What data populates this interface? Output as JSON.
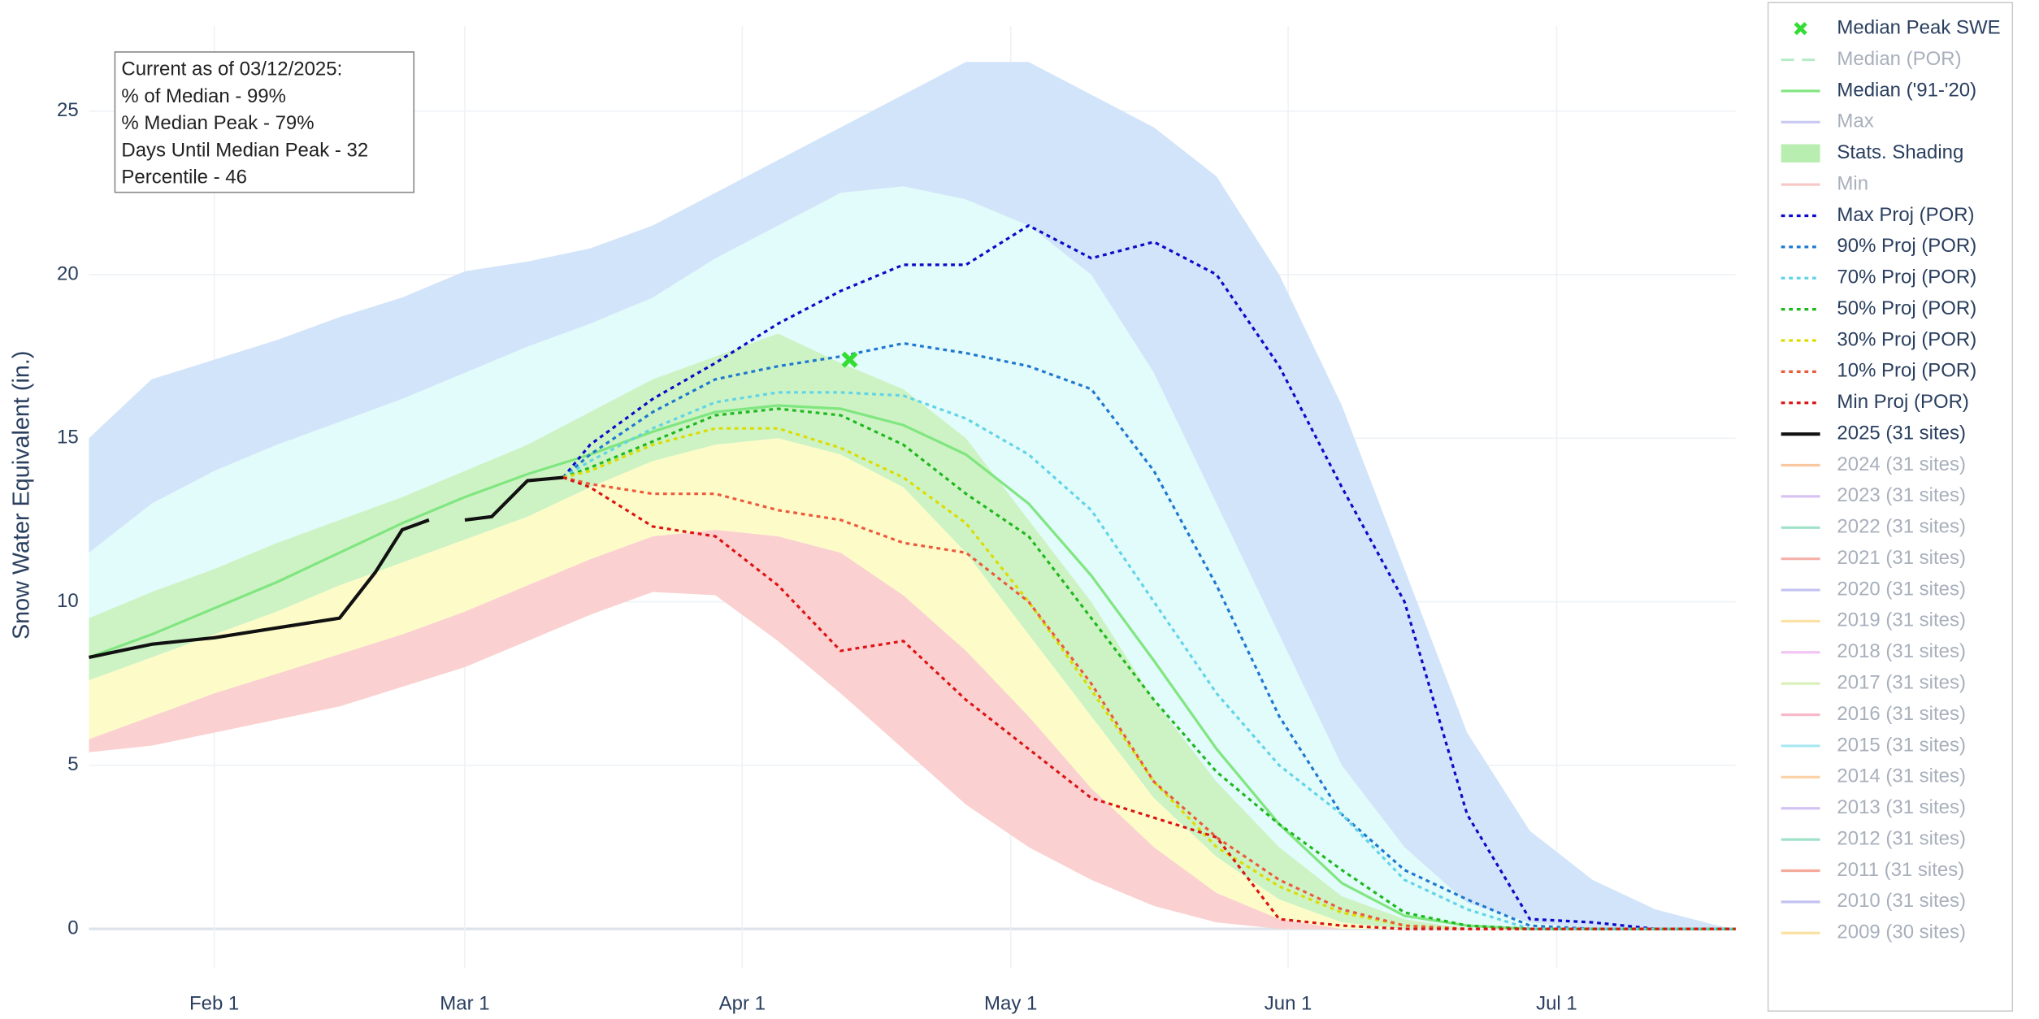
{
  "chart_data": {
    "type": "line",
    "y_label": "Snow Water Equivalent (in.)",
    "annotation": [
      "Current as of 03/12/2025:",
      "% of Median - 99%",
      "% Median Peak - 79%",
      "Days Until Median Peak - 32",
      "Percentile - 46"
    ],
    "xlim": [
      18,
      202
    ],
    "xticks": [
      {
        "value": 32,
        "label": "Feb 1"
      },
      {
        "value": 60,
        "label": "Mar 1"
      },
      {
        "value": 91,
        "label": "Apr 1"
      },
      {
        "value": 121,
        "label": "May 1"
      },
      {
        "value": 152,
        "label": "Jun 1"
      },
      {
        "value": 182,
        "label": "Jul 1"
      }
    ],
    "ylim": [
      -1.2,
      27.6
    ],
    "yticks": [
      0,
      5,
      10,
      15,
      20,
      25
    ],
    "grid": true,
    "legend": "right",
    "series": [
      {
        "name": "Median Peak SWE",
        "kind": "marker",
        "color": "#33dd33",
        "x": [
          103
        ],
        "values": [
          17.4
        ]
      },
      {
        "name": "Median (POR)",
        "visible": false,
        "color": "#b8ecc8",
        "dash": "dash"
      },
      {
        "name": "Median ('91-'20)",
        "kind": "line",
        "color": "#80e680",
        "x": [
          18,
          25,
          32,
          39,
          46,
          53,
          60,
          67,
          74,
          81,
          88,
          95,
          102,
          109,
          116,
          123,
          130,
          137,
          144,
          151,
          158,
          165,
          172,
          179,
          186,
          193,
          200,
          202
        ],
        "values": [
          8.3,
          9,
          9.8,
          10.6,
          11.5,
          12.4,
          13.2,
          13.9,
          14.5,
          15.2,
          15.8,
          16,
          15.9,
          15.4,
          14.5,
          13,
          10.8,
          8.2,
          5.5,
          3.2,
          1.4,
          0.4,
          0.1,
          0,
          0,
          0,
          0,
          0
        ]
      },
      {
        "name": "Max",
        "visible": false,
        "color": "#c8c8f2"
      },
      {
        "name": "Stats. Shading",
        "kind": "band",
        "x": [
          18,
          25,
          32,
          39,
          46,
          53,
          60,
          67,
          74,
          81,
          88,
          95,
          102,
          109,
          116,
          123,
          130,
          137,
          144,
          151,
          158,
          165,
          172,
          179,
          186,
          193,
          200,
          202
        ],
        "bounds": [
          [
            5.4,
            5.6,
            6,
            6.4,
            6.8,
            7.4,
            8,
            8.8,
            9.6,
            10.3,
            10.2,
            8.8,
            7.2,
            5.5,
            3.8,
            2.5,
            1.5,
            0.7,
            0.2,
            0,
            0,
            0,
            0,
            0,
            0,
            0,
            0,
            0
          ],
          [
            5.8,
            6.5,
            7.2,
            7.8,
            8.4,
            9,
            9.7,
            10.5,
            11.3,
            12,
            12.2,
            12,
            11.5,
            10.2,
            8.5,
            6.5,
            4.3,
            2.5,
            1.1,
            0.3,
            0,
            0,
            0,
            0,
            0,
            0,
            0,
            0
          ],
          [
            7.6,
            8.3,
            9,
            9.7,
            10.5,
            11.2,
            11.9,
            12.6,
            13.5,
            14.3,
            14.8,
            15,
            14.5,
            13.5,
            11.5,
            9,
            6.5,
            4,
            2.2,
            0.9,
            0.2,
            0,
            0,
            0,
            0,
            0,
            0,
            0
          ],
          [
            9.5,
            10.3,
            11,
            11.8,
            12.5,
            13.2,
            14,
            14.8,
            15.8,
            16.8,
            17.5,
            18.2,
            17.3,
            16.5,
            15,
            12.5,
            10,
            7,
            4.5,
            2.5,
            1,
            0.3,
            0,
            0,
            0,
            0,
            0,
            0
          ],
          [
            11.5,
            13,
            14,
            14.8,
            15.5,
            16.2,
            17,
            17.8,
            18.5,
            19.3,
            20.5,
            21.5,
            22.5,
            22.7,
            22.3,
            21.5,
            20,
            17,
            13,
            9,
            5,
            2.5,
            0.8,
            0.2,
            0,
            0,
            0,
            0
          ],
          [
            15,
            16.8,
            17.4,
            18,
            18.7,
            19.3,
            20.1,
            20.4,
            20.8,
            21.5,
            22.5,
            23.5,
            24.5,
            25.5,
            26.5,
            26.5,
            25.5,
            24.5,
            23,
            20,
            16,
            11,
            6,
            3,
            1.5,
            0.6,
            0.1,
            0
          ]
        ],
        "colors": [
          "#fbd0d0",
          "#fdfcc8",
          "#cdf3c4",
          "#e2fbfb",
          "#d2e4f9"
        ],
        "color": "#b8eeb0"
      },
      {
        "name": "Min",
        "visible": false,
        "color": "#f8c8c8"
      },
      {
        "name": "Max Proj (POR)",
        "kind": "line",
        "dash": "dot",
        "color": "#0a0ac8",
        "x": [
          71,
          74,
          81,
          88,
          95,
          102,
          109,
          116,
          123,
          130,
          137,
          144,
          151,
          158,
          165,
          172,
          179,
          186,
          193,
          200,
          202
        ],
        "values": [
          13.8,
          14.8,
          16.2,
          17.3,
          18.5,
          19.5,
          20.3,
          20.3,
          21.5,
          20.5,
          21,
          20,
          17.2,
          13.5,
          10,
          3.5,
          0.3,
          0.2,
          0,
          0,
          0
        ]
      },
      {
        "name": "90% Proj (POR)",
        "kind": "line",
        "dash": "dot",
        "color": "#1f78d0",
        "x": [
          71,
          74,
          81,
          88,
          95,
          102,
          109,
          116,
          123,
          130,
          137,
          144,
          151,
          158,
          165,
          172,
          179,
          186,
          193,
          200,
          202
        ],
        "values": [
          13.8,
          14.5,
          15.8,
          16.8,
          17.2,
          17.5,
          17.9,
          17.6,
          17.2,
          16.5,
          14,
          10.5,
          6.5,
          3.5,
          1.8,
          0.9,
          0.1,
          0,
          0,
          0,
          0
        ]
      },
      {
        "name": "70% Proj (POR)",
        "kind": "line",
        "dash": "dot",
        "color": "#62d4e6",
        "x": [
          71,
          74,
          81,
          88,
          95,
          102,
          109,
          116,
          123,
          130,
          137,
          144,
          151,
          158,
          165,
          172,
          179,
          186,
          193,
          200,
          202
        ],
        "values": [
          13.8,
          14.3,
          15.3,
          16.1,
          16.4,
          16.4,
          16.3,
          15.6,
          14.5,
          12.8,
          10,
          7.2,
          5,
          3.5,
          1.5,
          0.6,
          0,
          0,
          0,
          0,
          0
        ]
      },
      {
        "name": "50% Proj (POR)",
        "kind": "line",
        "dash": "dot",
        "color": "#1fb81f",
        "x": [
          71,
          74,
          81,
          88,
          95,
          102,
          109,
          116,
          123,
          130,
          137,
          144,
          151,
          158,
          165,
          172,
          179,
          186,
          193,
          200,
          202
        ],
        "values": [
          13.8,
          14.1,
          14.9,
          15.7,
          15.9,
          15.7,
          14.8,
          13.3,
          12,
          9.5,
          7,
          4.8,
          3.2,
          1.8,
          0.5,
          0.1,
          0,
          0,
          0,
          0,
          0
        ]
      },
      {
        "name": "30% Proj (POR)",
        "kind": "line",
        "dash": "dot",
        "color": "#dcdc00",
        "x": [
          71,
          74,
          81,
          88,
          95,
          102,
          109,
          116,
          123,
          130,
          137,
          144,
          151,
          158,
          165,
          172,
          179,
          186,
          193,
          200,
          202
        ],
        "values": [
          13.8,
          14,
          14.8,
          15.3,
          15.3,
          14.7,
          13.8,
          12.4,
          10,
          7.3,
          4.5,
          2.5,
          1.3,
          0.5,
          0.1,
          0,
          0,
          0,
          0,
          0,
          0
        ]
      },
      {
        "name": "10% Proj (POR)",
        "kind": "line",
        "dash": "dot",
        "color": "#ec5a3c",
        "x": [
          71,
          74,
          81,
          88,
          95,
          102,
          109,
          116,
          123,
          130,
          137,
          144,
          151,
          158,
          165,
          172,
          179,
          186,
          193,
          200,
          202
        ],
        "values": [
          13.8,
          13.6,
          13.3,
          13.3,
          12.8,
          12.5,
          11.8,
          11.5,
          10,
          7.5,
          4.5,
          2.8,
          1.5,
          0.6,
          0.1,
          0,
          0,
          0,
          0,
          0,
          0
        ]
      },
      {
        "name": "Min Proj (POR)",
        "kind": "line",
        "dash": "dot",
        "color": "#dc1414",
        "x": [
          71,
          74,
          81,
          88,
          95,
          102,
          109,
          116,
          123,
          130,
          137,
          144,
          151,
          158,
          165,
          172,
          179,
          186,
          193,
          200,
          202
        ],
        "values": [
          13.8,
          13.5,
          12.3,
          12,
          10.5,
          8.5,
          8.8,
          7,
          5.5,
          4,
          3.4,
          2.8,
          0.3,
          0.1,
          0,
          0,
          0,
          0,
          0,
          0,
          0
        ]
      },
      {
        "name": "2025 (31 sites)",
        "kind": "line",
        "color": "#111111",
        "width": 2.6,
        "x": [
          18,
          25,
          32,
          39,
          46,
          50,
          53,
          56,
          58,
          60,
          63,
          67,
          71
        ],
        "values": [
          8.3,
          8.7,
          8.9,
          9.2,
          9.5,
          10.9,
          12.2,
          12.5,
          null,
          12.5,
          12.6,
          13.7,
          13.8
        ]
      },
      {
        "name": "2024 (31 sites)",
        "visible": false,
        "color": "#f8c8a0"
      },
      {
        "name": "2023 (31 sites)",
        "visible": false,
        "color": "#d8c2f2"
      },
      {
        "name": "2022 (31 sites)",
        "visible": false,
        "color": "#9fe2c8"
      },
      {
        "name": "2021 (31 sites)",
        "visible": false,
        "color": "#f4b0a8"
      },
      {
        "name": "2020 (31 sites)",
        "visible": false,
        "color": "#c2c2f2"
      },
      {
        "name": "2019 (31 sites)",
        "visible": false,
        "color": "#fbe2a2"
      },
      {
        "name": "2018 (31 sites)",
        "visible": false,
        "color": "#f2c2f2"
      },
      {
        "name": "2017 (31 sites)",
        "visible": false,
        "color": "#d8f0b8"
      },
      {
        "name": "2016 (31 sites)",
        "visible": false,
        "color": "#f8b8c8"
      },
      {
        "name": "2015 (31 sites)",
        "visible": false,
        "color": "#a8e8f2"
      },
      {
        "name": "2014 (31 sites)",
        "visible": false,
        "color": "#fbd2a8"
      },
      {
        "name": "2013 (31 sites)",
        "visible": false,
        "color": "#d2c2f2"
      },
      {
        "name": "2012 (31 sites)",
        "visible": false,
        "color": "#a0e2c8"
      },
      {
        "name": "2011 (31 sites)",
        "visible": false,
        "color": "#f4aa9a"
      },
      {
        "name": "2010 (31 sites)",
        "visible": false,
        "color": "#c2c2f2"
      },
      {
        "name": "2009 (30 sites)",
        "visible": false,
        "color": "#fbe2a2"
      }
    ]
  }
}
